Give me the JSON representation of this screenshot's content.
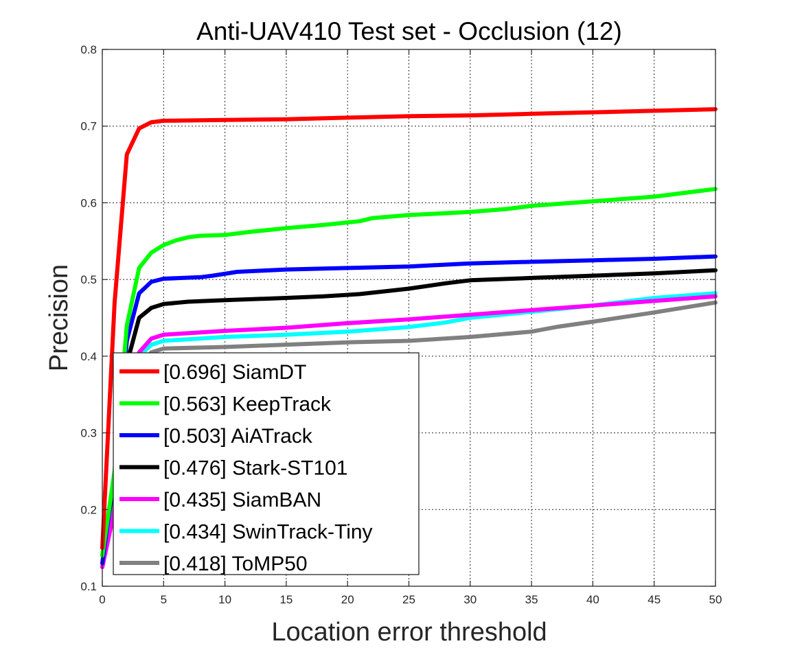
{
  "chart_data": {
    "type": "line",
    "title": "Anti-UAV410 Test set - Occlusion (12)",
    "xlabel": "Location error threshold",
    "ylabel": "Precision",
    "xlim": [
      0,
      50
    ],
    "ylim": [
      0.1,
      0.8
    ],
    "xticks": [
      "0",
      "5",
      "10",
      "15",
      "20",
      "25",
      "30",
      "35",
      "40",
      "45",
      "50"
    ],
    "yticks": [
      "0.1",
      "0.2",
      "0.3",
      "0.4",
      "0.5",
      "0.6",
      "0.7",
      "0.8"
    ],
    "grid": true,
    "legend_position": "bottom-left",
    "series": [
      {
        "name": "[0.696] SiamDT",
        "color": "#ff0000",
        "points": [
          [
            0,
            0.15
          ],
          [
            1,
            0.47
          ],
          [
            2,
            0.663
          ],
          [
            3,
            0.697
          ],
          [
            4,
            0.705
          ],
          [
            5,
            0.707
          ],
          [
            10,
            0.708
          ],
          [
            15,
            0.709
          ],
          [
            20,
            0.711
          ],
          [
            25,
            0.713
          ],
          [
            30,
            0.714
          ],
          [
            35,
            0.716
          ],
          [
            40,
            0.718
          ],
          [
            45,
            0.72
          ],
          [
            50,
            0.722
          ]
        ]
      },
      {
        "name": "[0.563] KeepTrack",
        "color": "#00ff00",
        "points": [
          [
            0,
            0.14
          ],
          [
            1,
            0.25
          ],
          [
            2,
            0.44
          ],
          [
            3,
            0.515
          ],
          [
            4,
            0.535
          ],
          [
            5,
            0.545
          ],
          [
            6,
            0.551
          ],
          [
            7,
            0.555
          ],
          [
            8,
            0.557
          ],
          [
            10,
            0.558
          ],
          [
            12,
            0.562
          ],
          [
            15,
            0.567
          ],
          [
            18,
            0.571
          ],
          [
            21,
            0.576
          ],
          [
            22,
            0.58
          ],
          [
            25,
            0.584
          ],
          [
            30,
            0.588
          ],
          [
            33,
            0.592
          ],
          [
            35,
            0.596
          ],
          [
            40,
            0.602
          ],
          [
            45,
            0.608
          ],
          [
            50,
            0.618
          ]
        ]
      },
      {
        "name": "[0.503] AiATrack",
        "color": "#0000ff",
        "points": [
          [
            0,
            0.13
          ],
          [
            1,
            0.25
          ],
          [
            2,
            0.42
          ],
          [
            3,
            0.482
          ],
          [
            4,
            0.497
          ],
          [
            5,
            0.501
          ],
          [
            8,
            0.503
          ],
          [
            9,
            0.505
          ],
          [
            11,
            0.51
          ],
          [
            15,
            0.513
          ],
          [
            20,
            0.515
          ],
          [
            25,
            0.517
          ],
          [
            30,
            0.521
          ],
          [
            35,
            0.523
          ],
          [
            40,
            0.525
          ],
          [
            45,
            0.527
          ],
          [
            50,
            0.53
          ]
        ]
      },
      {
        "name": "[0.476] Stark-ST101",
        "color": "#000000",
        "points": [
          [
            0,
            0.14
          ],
          [
            1,
            0.24
          ],
          [
            2,
            0.39
          ],
          [
            3,
            0.45
          ],
          [
            4,
            0.463
          ],
          [
            5,
            0.468
          ],
          [
            7,
            0.471
          ],
          [
            10,
            0.473
          ],
          [
            15,
            0.476
          ],
          [
            18,
            0.478
          ],
          [
            21,
            0.481
          ],
          [
            25,
            0.488
          ],
          [
            28,
            0.495
          ],
          [
            30,
            0.499
          ],
          [
            35,
            0.502
          ],
          [
            40,
            0.505
          ],
          [
            45,
            0.508
          ],
          [
            50,
            0.512
          ]
        ]
      },
      {
        "name": "[0.435] SiamBAN",
        "color": "#ff00ff",
        "points": [
          [
            0,
            0.125
          ],
          [
            1,
            0.2
          ],
          [
            2,
            0.35
          ],
          [
            3,
            0.405
          ],
          [
            4,
            0.423
          ],
          [
            5,
            0.428
          ],
          [
            8,
            0.431
          ],
          [
            10,
            0.433
          ],
          [
            15,
            0.437
          ],
          [
            20,
            0.443
          ],
          [
            25,
            0.448
          ],
          [
            30,
            0.454
          ],
          [
            35,
            0.46
          ],
          [
            40,
            0.466
          ],
          [
            45,
            0.472
          ],
          [
            50,
            0.478
          ]
        ]
      },
      {
        "name": "[0.434] SwinTrack-Tiny",
        "color": "#00ffff",
        "points": [
          [
            0,
            0.125
          ],
          [
            1,
            0.2
          ],
          [
            2,
            0.33
          ],
          [
            3,
            0.4
          ],
          [
            4,
            0.415
          ],
          [
            5,
            0.42
          ],
          [
            10,
            0.425
          ],
          [
            15,
            0.428
          ],
          [
            20,
            0.432
          ],
          [
            25,
            0.438
          ],
          [
            28,
            0.444
          ],
          [
            30,
            0.45
          ],
          [
            35,
            0.458
          ],
          [
            40,
            0.466
          ],
          [
            45,
            0.476
          ],
          [
            50,
            0.482
          ]
        ]
      },
      {
        "name": "[0.418] ToMP50",
        "color": "#808080",
        "points": [
          [
            0,
            0.14
          ],
          [
            1,
            0.22
          ],
          [
            2,
            0.33
          ],
          [
            3,
            0.39
          ],
          [
            4,
            0.405
          ],
          [
            5,
            0.41
          ],
          [
            10,
            0.412
          ],
          [
            15,
            0.415
          ],
          [
            20,
            0.418
          ],
          [
            25,
            0.42
          ],
          [
            30,
            0.425
          ],
          [
            35,
            0.432
          ],
          [
            37,
            0.438
          ],
          [
            40,
            0.445
          ],
          [
            45,
            0.457
          ],
          [
            50,
            0.47
          ]
        ]
      }
    ]
  }
}
